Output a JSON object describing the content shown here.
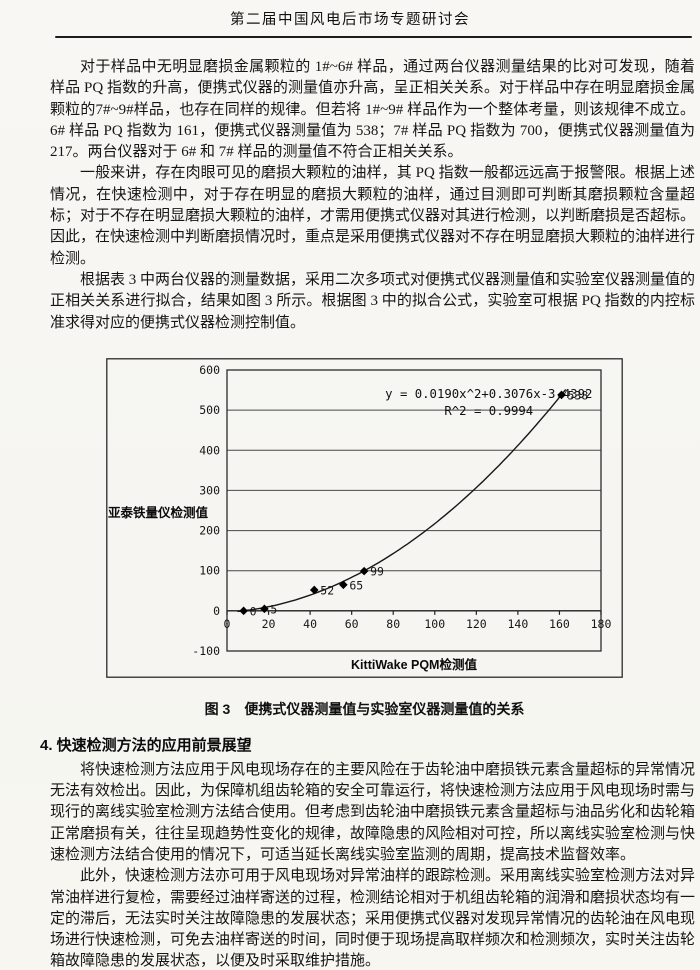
{
  "header": {
    "title": "第二届中国风电后市场专题研讨会"
  },
  "body": {
    "paragraphs": [
      "对于样品中无明显磨损金属颗粒的 1#~6# 样品，通过两台仪器测量结果的比对可发现，随着样品 PQ 指数的升高，便携式仪器的测量值亦升高，呈正相关关系。对于样品中存在明显磨损金属颗粒的7#~9#样品，也存在同样的规律。但若将 1#~9# 样品作为一个整体考量，则该规律不成立。6# 样品 PQ 指数为 161，便携式仪器测量值为 538；7# 样品 PQ 指数为 700，便携式仪器测量值为 217。两台仪器对于 6# 和 7# 样品的测量值不符合正相关关系。",
      "一般来讲，存在肉眼可见的磨损大颗粒的油样，其 PQ 指数一般都远远高于报警限。根据上述情况，在快速检测中，对于存在明显的磨损大颗粒的油样，通过目测即可判断其磨损颗粒含量超标；对于不存在明显磨损大颗粒的油样，才需用便携式仪器对其进行检测，以判断磨损是否超标。因此，在快速检测中判断磨损情况时，重点是采用便携式仪器对不存在明显磨损大颗粒的油样进行检测。",
      "根据表 3 中两台仪器的测量数据，采用二次多项式对便携式仪器测量值和实验室仪器测量值的正相关关系进行拟合，结果如图 3 所示。根据图 3 中的拟合公式，实验室可根据 PQ 指数的内控标准求得对应的便携式仪器检测控制值。",
      "将快速检测方法应用于风电现场存在的主要风险在于齿轮油中磨损铁元素含量超标的异常情况无法有效检出。因此，为保障机组齿轮箱的安全可靠运行，将快速检测方法应用于风电现场时需与现行的离线实验室检测方法结合使用。但考虑到齿轮油中磨损铁元素含量超标与油品劣化和齿轮箱正常磨损有关，往往呈现趋势性变化的规律，故障隐患的风险相对可控，所以离线实验室检测与快速检测方法结合使用的情况下，可适当延长离线实验室监测的周期，提高技术监督效率。",
      "此外，快速检测方法亦可用于风电现场对异常油样的跟踪检测。采用离线实验室检测方法对异常油样进行复检，需要经过油样寄送的过程，检测结论相对于机组齿轮箱的润滑和磨损状态均有一定的滞后，无法实时关注故障隐患的发展状态；采用便携式仪器对发现异常情况的齿轮油在风电现场进行快速检测，可免去油样寄送的时间，同时便于现场提高取样频次和检测频次，实时关注齿轮箱故障隐患的发展状态，以便及时采取维护措施。"
    ]
  },
  "figure": {
    "caption": "图 3　便携式仪器测量值与实验室仪器测量值的关系"
  },
  "section4": {
    "heading": "4. 快速检测方法的应用前景展望"
  },
  "chart_data": {
    "type": "scatter",
    "title": "",
    "xlabel": "KittiWake PQM检测值",
    "ylabel": "亚泰铁量仪检测值",
    "xlim": [
      0,
      180
    ],
    "xtick_step": 20,
    "ylim": [
      -100,
      600
    ],
    "ytick_step": 100,
    "grid": "horizontal",
    "marker": "diamond",
    "points": [
      {
        "x": 8,
        "y": 0,
        "label": "0"
      },
      {
        "x": 18,
        "y": 5,
        "label": "5"
      },
      {
        "x": 42,
        "y": 52,
        "label": "52"
      },
      {
        "x": 56,
        "y": 65,
        "label": "65"
      },
      {
        "x": 66,
        "y": 99,
        "label": "99"
      },
      {
        "x": 161,
        "y": 538,
        "label": "538"
      }
    ],
    "trendline": {
      "type": "polynomial2",
      "a": 0.019,
      "b": 0.3076,
      "c": -3.4392,
      "equation": "y = 0.0190x^2+0.3076x-3.4392",
      "r_squared": "R^2 = 0.9994"
    }
  }
}
